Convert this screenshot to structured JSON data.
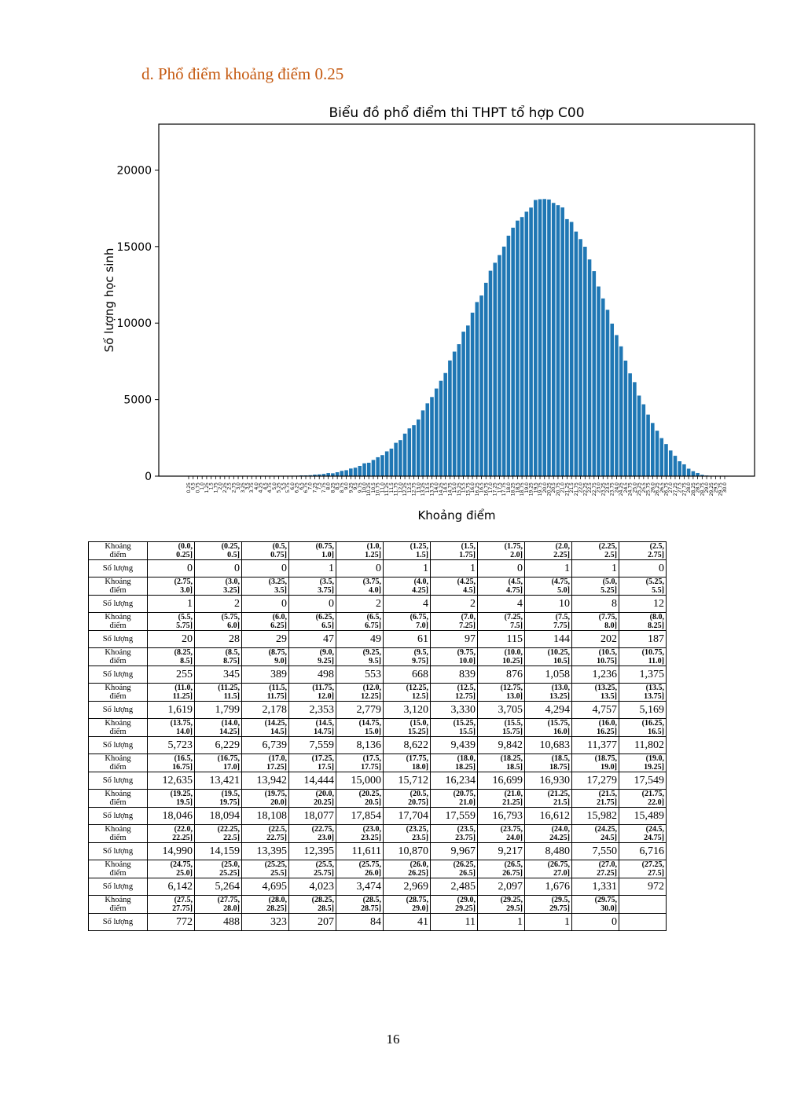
{
  "heading": "d.  Phổ điểm khoảng điểm 0.25",
  "page_number": "16",
  "colors": {
    "heading": "#c55a11",
    "bar": "#1f77b4",
    "axis": "#000000"
  },
  "chart_data": {
    "type": "bar",
    "title": "Biểu đồ phổ điểm thi THPT tổ hợp C00",
    "xlabel": "Khoảng điểm",
    "ylabel": "Số lượng học sinh",
    "ylim": [
      0,
      23000
    ],
    "yticks": [
      0,
      5000,
      10000,
      15000,
      20000
    ],
    "ytick_labels": [
      "0",
      "5000",
      "10000",
      "15000",
      "20000"
    ],
    "grid": false,
    "legend": "none",
    "categories": [
      "0.25",
      "0.5",
      "0.75",
      "1.0",
      "1.25",
      "1.5",
      "1.75",
      "2.0",
      "2.25",
      "2.5",
      "2.75",
      "3.0",
      "3.25",
      "3.5",
      "3.75",
      "4.0",
      "4.25",
      "4.5",
      "4.75",
      "5.0",
      "5.25",
      "5.5",
      "5.75",
      "6.0",
      "6.25",
      "6.5",
      "6.75",
      "7.0",
      "7.25",
      "7.5",
      "7.75",
      "8.0",
      "8.25",
      "8.5",
      "8.75",
      "9.0",
      "9.25",
      "9.5",
      "9.75",
      "10.0",
      "10.25",
      "10.5",
      "10.75",
      "11.0",
      "11.25",
      "11.5",
      "11.75",
      "12.0",
      "12.25",
      "12.5",
      "12.75",
      "13.0",
      "13.25",
      "13.5",
      "13.75",
      "14.0",
      "14.25",
      "14.5",
      "14.75",
      "15.0",
      "15.25",
      "15.5",
      "15.75",
      "16.0",
      "16.25",
      "16.5",
      "16.75",
      "17.0",
      "17.25",
      "17.5",
      "17.75",
      "18.0",
      "18.25",
      "18.5",
      "18.75",
      "19.0",
      "19.25",
      "19.5",
      "19.75",
      "20.0",
      "20.25",
      "20.5",
      "20.75",
      "21.0",
      "21.25",
      "21.5",
      "21.75",
      "22.0",
      "22.25",
      "22.5",
      "22.75",
      "23.0",
      "23.25",
      "23.5",
      "23.75",
      "24.0",
      "24.25",
      "24.5",
      "24.75",
      "25.0",
      "25.25",
      "25.5",
      "25.75",
      "26.0",
      "26.25",
      "26.5",
      "26.75",
      "27.0",
      "27.25",
      "27.5",
      "27.75",
      "28.0",
      "28.25",
      "28.5",
      "28.75",
      "29.0",
      "29.25",
      "29.5",
      "29.75",
      "30.0"
    ],
    "values": [
      0,
      0,
      0,
      1,
      0,
      1,
      1,
      0,
      1,
      1,
      0,
      1,
      2,
      0,
      0,
      2,
      4,
      2,
      4,
      10,
      8,
      12,
      20,
      28,
      29,
      47,
      49,
      61,
      97,
      115,
      144,
      202,
      187,
      255,
      345,
      389,
      498,
      553,
      668,
      839,
      876,
      1058,
      1236,
      1375,
      1619,
      1799,
      2178,
      2353,
      2779,
      3120,
      3330,
      3705,
      4294,
      4757,
      5169,
      5723,
      6229,
      6739,
      7559,
      8136,
      8622,
      9439,
      9842,
      10683,
      11377,
      11802,
      12635,
      13421,
      13942,
      14444,
      15000,
      15712,
      16234,
      16699,
      16930,
      17279,
      17549,
      18046,
      18094,
      18108,
      18077,
      17854,
      17704,
      17559,
      16793,
      16612,
      15982,
      15489,
      14990,
      14159,
      13395,
      12395,
      11611,
      10870,
      9967,
      9217,
      8480,
      7550,
      6716,
      6142,
      5264,
      4695,
      4023,
      3474,
      2969,
      2485,
      2097,
      1676,
      1331,
      972,
      772,
      488,
      323,
      207,
      84,
      41,
      11,
      1,
      1,
      0
    ]
  },
  "table": {
    "range_label": "Khoảng\nđiểm",
    "count_label": "Số lượng",
    "rows": [
      {
        "ranges": [
          "(0.0,\n0.25]",
          "(0.25,\n0.5]",
          "(0.5,\n0.75]",
          "(0.75,\n1.0]",
          "(1.0,\n1.25]",
          "(1.25,\n1.5]",
          "(1.5,\n1.75]",
          "(1.75,\n2.0]",
          "(2.0,\n2.25]",
          "(2.25,\n2.5]",
          "(2.5,\n2.75]"
        ],
        "counts": [
          "0",
          "0",
          "0",
          "1",
          "0",
          "1",
          "1",
          "0",
          "1",
          "1",
          "0"
        ]
      },
      {
        "ranges": [
          "(2.75,\n3.0]",
          "(3.0,\n3.25]",
          "(3.25,\n3.5]",
          "(3.5,\n3.75]",
          "(3.75,\n4.0]",
          "(4.0,\n4.25]",
          "(4.25,\n4.5]",
          "(4.5,\n4.75]",
          "(4.75,\n5.0]",
          "(5.0,\n5.25]",
          "(5.25,\n5.5]"
        ],
        "counts": [
          "1",
          "2",
          "0",
          "0",
          "2",
          "4",
          "2",
          "4",
          "10",
          "8",
          "12"
        ]
      },
      {
        "ranges": [
          "(5.5,\n5.75]",
          "(5.75,\n6.0]",
          "(6.0,\n6.25]",
          "(6.25,\n6.5]",
          "(6.5,\n6.75]",
          "(6.75,\n7.0]",
          "(7.0,\n7.25]",
          "(7.25,\n7.5]",
          "(7.5,\n7.75]",
          "(7.75,\n8.0]",
          "(8.0,\n8.25]"
        ],
        "counts": [
          "20",
          "28",
          "29",
          "47",
          "49",
          "61",
          "97",
          "115",
          "144",
          "202",
          "187"
        ]
      },
      {
        "ranges": [
          "(8.25,\n8.5]",
          "(8.5,\n8.75]",
          "(8.75,\n9.0]",
          "(9.0,\n9.25]",
          "(9.25,\n9.5]",
          "(9.5,\n9.75]",
          "(9.75,\n10.0]",
          "(10.0,\n10.25]",
          "(10.25,\n10.5]",
          "(10.5,\n10.75]",
          "(10.75,\n11.0]"
        ],
        "counts": [
          "255",
          "345",
          "389",
          "498",
          "553",
          "668",
          "839",
          "876",
          "1,058",
          "1,236",
          "1,375"
        ]
      },
      {
        "ranges": [
          "(11.0,\n11.25]",
          "(11.25,\n11.5]",
          "(11.5,\n11.75]",
          "(11.75,\n12.0]",
          "(12.0,\n12.25]",
          "(12.25,\n12.5]",
          "(12.5,\n12.75]",
          "(12.75,\n13.0]",
          "(13.0,\n13.25]",
          "(13.25,\n13.5]",
          "(13.5,\n13.75]"
        ],
        "counts": [
          "1,619",
          "1,799",
          "2,178",
          "2,353",
          "2,779",
          "3,120",
          "3,330",
          "3,705",
          "4,294",
          "4,757",
          "5,169"
        ]
      },
      {
        "ranges": [
          "(13.75,\n14.0]",
          "(14.0,\n14.25]",
          "(14.25,\n14.5]",
          "(14.5,\n14.75]",
          "(14.75,\n15.0]",
          "(15.0,\n15.25]",
          "(15.25,\n15.5]",
          "(15.5,\n15.75]",
          "(15.75,\n16.0]",
          "(16.0,\n16.25]",
          "(16.25,\n16.5]"
        ],
        "counts": [
          "5,723",
          "6,229",
          "6,739",
          "7,559",
          "8,136",
          "8,622",
          "9,439",
          "9,842",
          "10,683",
          "11,377",
          "11,802"
        ]
      },
      {
        "ranges": [
          "(16.5,\n16.75]",
          "(16.75,\n17.0]",
          "(17.0,\n17.25]",
          "(17.25,\n17.5]",
          "(17.5,\n17.75]",
          "(17.75,\n18.0]",
          "(18.0,\n18.25]",
          "(18.25,\n18.5]",
          "(18.5,\n18.75]",
          "(18.75,\n19.0]",
          "(19.0,\n19.25]"
        ],
        "counts": [
          "12,635",
          "13,421",
          "13,942",
          "14,444",
          "15,000",
          "15,712",
          "16,234",
          "16,699",
          "16,930",
          "17,279",
          "17,549"
        ]
      },
      {
        "ranges": [
          "(19.25,\n19.5]",
          "(19.5,\n19.75]",
          "(19.75,\n20.0]",
          "(20.0,\n20.25]",
          "(20.25,\n20.5]",
          "(20.5,\n20.75]",
          "(20.75,\n21.0]",
          "(21.0,\n21.25]",
          "(21.25,\n21.5]",
          "(21.5,\n21.75]",
          "(21.75,\n22.0]"
        ],
        "counts": [
          "18,046",
          "18,094",
          "18,108",
          "18,077",
          "17,854",
          "17,704",
          "17,559",
          "16,793",
          "16,612",
          "15,982",
          "15,489"
        ]
      },
      {
        "ranges": [
          "(22.0,\n22.25]",
          "(22.25,\n22.5]",
          "(22.5,\n22.75]",
          "(22.75,\n23.0]",
          "(23.0,\n23.25]",
          "(23.25,\n23.5]",
          "(23.5,\n23.75]",
          "(23.75,\n24.0]",
          "(24.0,\n24.25]",
          "(24.25,\n24.5]",
          "(24.5,\n24.75]"
        ],
        "counts": [
          "14,990",
          "14,159",
          "13,395",
          "12,395",
          "11,611",
          "10,870",
          "9,967",
          "9,217",
          "8,480",
          "7,550",
          "6,716"
        ]
      },
      {
        "ranges": [
          "(24.75,\n25.0]",
          "(25.0,\n25.25]",
          "(25.25,\n25.5]",
          "(25.5,\n25.75]",
          "(25.75,\n26.0]",
          "(26.0,\n26.25]",
          "(26.25,\n26.5]",
          "(26.5,\n26.75]",
          "(26.75,\n27.0]",
          "(27.0,\n27.25]",
          "(27.25,\n27.5]"
        ],
        "counts": [
          "6,142",
          "5,264",
          "4,695",
          "4,023",
          "3,474",
          "2,969",
          "2,485",
          "2,097",
          "1,676",
          "1,331",
          "972"
        ]
      },
      {
        "ranges": [
          "(27.5,\n27.75]",
          "(27.75,\n28.0]",
          "(28.0,\n28.25]",
          "(28.25,\n28.5]",
          "(28.5,\n28.75]",
          "(28.75,\n29.0]",
          "(29.0,\n29.25]",
          "(29.25,\n29.5]",
          "(29.5,\n29.75]",
          "(29.75,\n30.0]",
          ""
        ],
        "counts": [
          "772",
          "488",
          "323",
          "207",
          "84",
          "41",
          "11",
          "1",
          "1",
          "0",
          ""
        ]
      }
    ]
  }
}
